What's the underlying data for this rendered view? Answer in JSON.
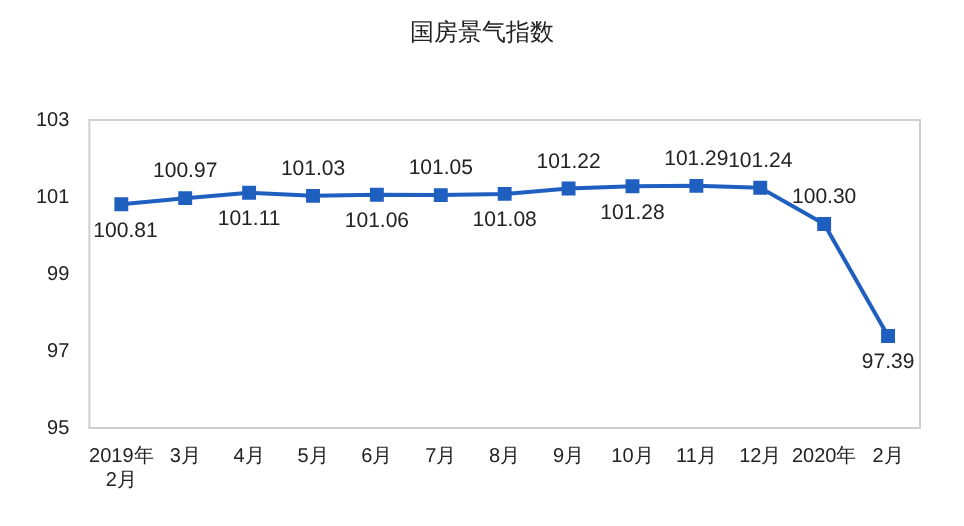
{
  "chart_data": {
    "type": "line",
    "title": "国房景气指数",
    "categories": [
      "2019年\n2月",
      "3月",
      "4月",
      "5月",
      "6月",
      "7月",
      "8月",
      "9月",
      "10月",
      "11月",
      "12月",
      "2020年",
      "2月"
    ],
    "series": [
      {
        "color": "#1f5fbf",
        "values": [
          100.81,
          100.97,
          101.11,
          101.03,
          101.06,
          101.05,
          101.08,
          101.22,
          101.28,
          101.29,
          101.24,
          100.3,
          97.39
        ]
      }
    ],
    "value_labels": [
      "100.81",
      "100.97",
      "101.11",
      "101.03",
      "101.06",
      "101.05",
      "101.08",
      "101.22",
      "101.28",
      "101.29",
      "101.24",
      "100.30",
      "97.39"
    ],
    "ylim": [
      95,
      103
    ],
    "yticks": [
      95,
      97,
      99,
      101,
      103
    ],
    "grid": false,
    "legend": false,
    "marker": "square",
    "line_style": "solid"
  }
}
